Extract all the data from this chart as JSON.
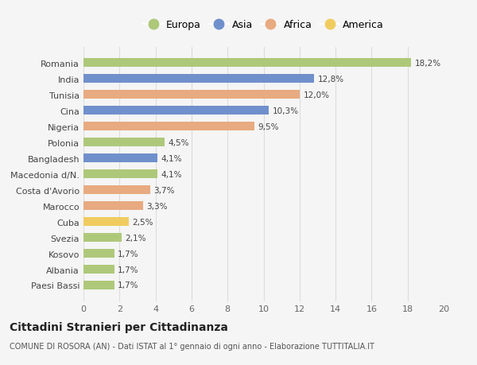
{
  "categories": [
    "Paesi Bassi",
    "Albania",
    "Kosovo",
    "Svezia",
    "Cuba",
    "Marocco",
    "Costa d'Avorio",
    "Macedonia d/N.",
    "Bangladesh",
    "Polonia",
    "Nigeria",
    "Cina",
    "Tunisia",
    "India",
    "Romania"
  ],
  "values": [
    1.7,
    1.7,
    1.7,
    2.1,
    2.5,
    3.3,
    3.7,
    4.1,
    4.1,
    4.5,
    9.5,
    10.3,
    12.0,
    12.8,
    18.2
  ],
  "continents": [
    "Europa",
    "Europa",
    "Europa",
    "Europa",
    "America",
    "Africa",
    "Africa",
    "Europa",
    "Asia",
    "Europa",
    "Africa",
    "Asia",
    "Africa",
    "Asia",
    "Europa"
  ],
  "colors": {
    "Europa": "#aec87a",
    "Asia": "#7090cc",
    "Africa": "#e8aa80",
    "America": "#f0cc60"
  },
  "labels": [
    "1,7%",
    "1,7%",
    "1,7%",
    "2,1%",
    "2,5%",
    "3,3%",
    "3,7%",
    "4,1%",
    "4,1%",
    "4,5%",
    "9,5%",
    "10,3%",
    "12,0%",
    "12,8%",
    "18,2%"
  ],
  "title": "Cittadini Stranieri per Cittadinanza",
  "subtitle": "COMUNE DI ROSORA (AN) - Dati ISTAT al 1° gennaio di ogni anno - Elaborazione TUTTITALIA.IT",
  "xlim": [
    0,
    20
  ],
  "xticks": [
    0,
    2,
    4,
    6,
    8,
    10,
    12,
    14,
    16,
    18,
    20
  ],
  "legend_order": [
    "Europa",
    "Asia",
    "Africa",
    "America"
  ],
  "bg_color": "#f5f5f5",
  "grid_color": "#dddddd",
  "bar_height": 0.55
}
